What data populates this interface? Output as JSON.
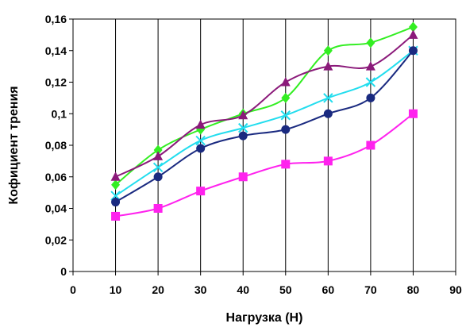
{
  "chart_data": {
    "type": "line",
    "title": "",
    "xlabel": "Нагрузка (Н)",
    "ylabel": "Кофициент трения",
    "xlim": [
      0,
      90
    ],
    "ylim": [
      0,
      0.16
    ],
    "x_ticks": [
      "0",
      "10",
      "20",
      "30",
      "40",
      "50",
      "60",
      "70",
      "80",
      "90"
    ],
    "y_ticks": [
      "0",
      "0,02",
      "0,04",
      "0,06",
      "0,08",
      "0,1",
      "0,12",
      "0,14",
      "0,16"
    ],
    "grid": "vertical",
    "legend": "none",
    "x": [
      10,
      20,
      30,
      40,
      50,
      60,
      70,
      80
    ],
    "series": [
      {
        "color": "#33ee22",
        "marker": "diamond",
        "values": [
          0.055,
          0.077,
          0.09,
          0.1,
          0.11,
          0.14,
          0.145,
          0.155
        ]
      },
      {
        "color": "#8b1a7a",
        "marker": "triangle",
        "values": [
          0.06,
          0.073,
          0.093,
          0.099,
          0.12,
          0.13,
          0.13,
          0.15
        ]
      },
      {
        "color": "#22ddee",
        "marker": "x",
        "values": [
          0.048,
          0.066,
          0.083,
          0.091,
          0.099,
          0.11,
          0.12,
          0.14
        ]
      },
      {
        "color": "#1a2a80",
        "marker": "circle",
        "values": [
          0.044,
          0.06,
          0.078,
          0.086,
          0.09,
          0.1,
          0.11,
          0.14
        ]
      },
      {
        "color": "#ff22ee",
        "marker": "square",
        "values": [
          0.035,
          0.04,
          0.051,
          0.06,
          0.068,
          0.07,
          0.08,
          0.1
        ]
      }
    ]
  }
}
